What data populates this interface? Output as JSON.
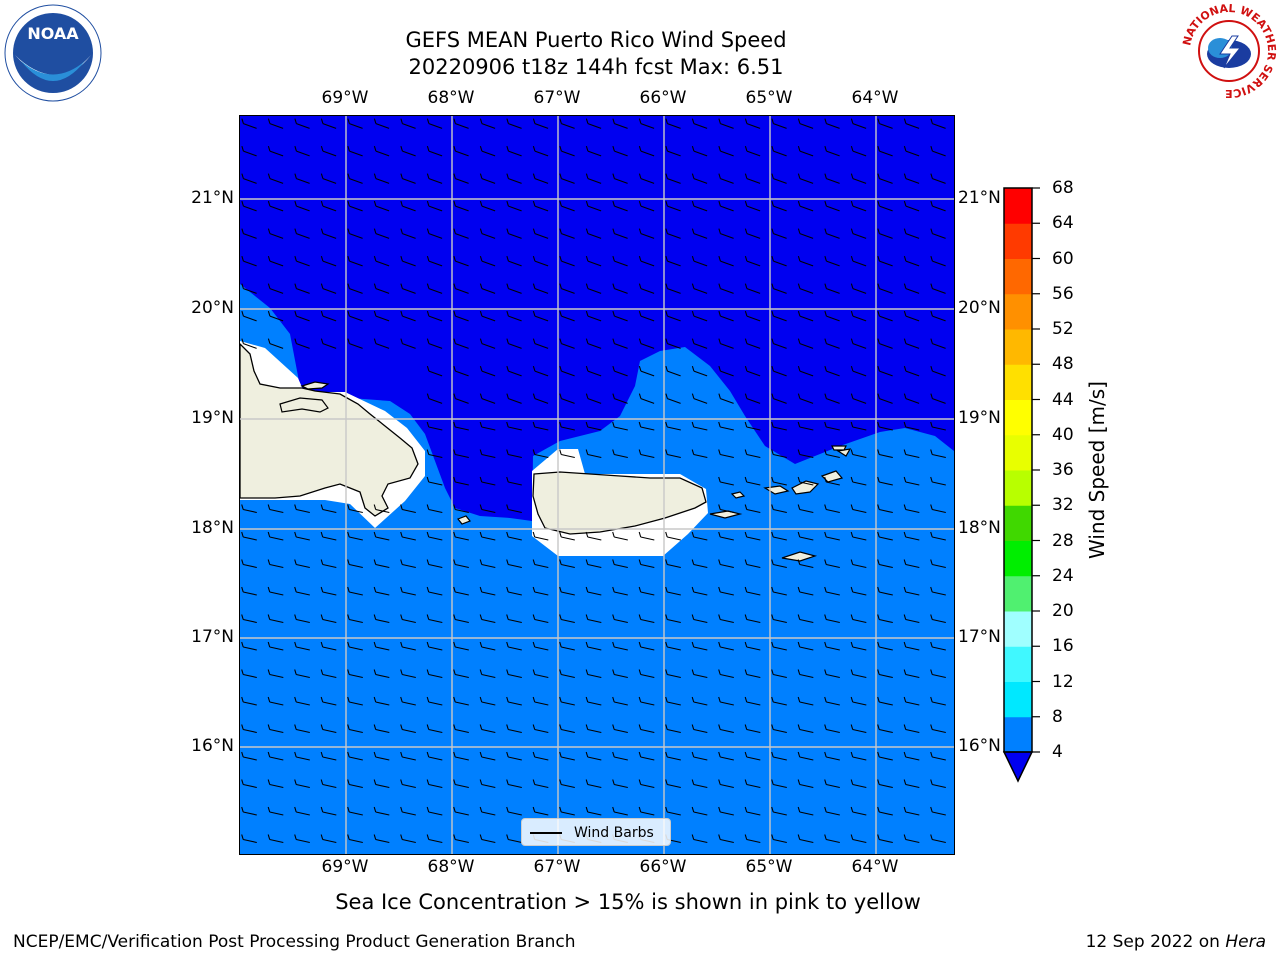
{
  "header": {
    "title_line1": "GEFS MEAN Puerto Rico Wind Speed",
    "title_line2": "20220906 t18z 144h fcst   Max: 6.51"
  },
  "axes": {
    "lon_labels": [
      "69°W",
      "68°W",
      "67°W",
      "66°W",
      "65°W",
      "64°W"
    ],
    "lat_labels": [
      "21°N",
      "20°N",
      "19°N",
      "18°N",
      "17°N",
      "16°N"
    ]
  },
  "legend": {
    "wind_barbs_label": "Wind Barbs"
  },
  "colorbar": {
    "label": "Wind Speed [m/s]",
    "ticks": [
      "68",
      "64",
      "60",
      "56",
      "52",
      "48",
      "44",
      "40",
      "36",
      "32",
      "28",
      "24",
      "20",
      "16",
      "12",
      "8",
      "4"
    ],
    "colors": [
      "#0000f0",
      "#0080ff",
      "#00e8ff",
      "#40f8ff",
      "#a0ffff",
      "#50f070",
      "#00ee00",
      "#40d800",
      "#b8ff00",
      "#e8ff00",
      "#ffff00",
      "#ffe000",
      "#ffb800",
      "#ff9000",
      "#ff6800",
      "#ff3a00",
      "#ff0000"
    ]
  },
  "footer": {
    "sea_ice_note": "Sea Ice Concentration > 15% is shown in pink to yellow",
    "credit": "NCEP/EMC/Verification Post Processing Product Generation Branch",
    "date": "12 Sep 2022 on",
    "host": "Hera"
  },
  "logos": {
    "left": "NOAA",
    "right": "NATIONAL WEATHER SERVICE"
  },
  "map_colors": {
    "wind_lt4": "#0000f0",
    "wind_4_8": "#0080ff",
    "land": "#efefdf",
    "masked": "#ffffff",
    "grid": "#c8c8c8"
  }
}
